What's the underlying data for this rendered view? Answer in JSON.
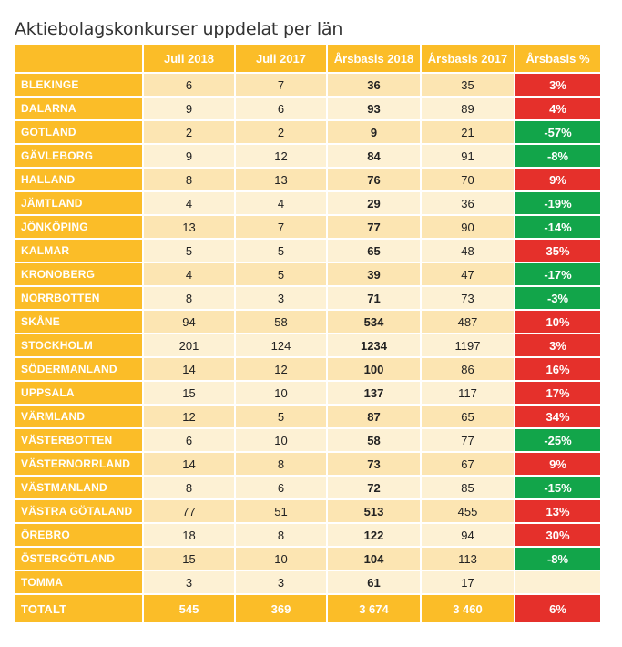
{
  "title": "Aktiebolagskonkurser uppdelat per län",
  "colors": {
    "header": "#fbbd28",
    "row_light": "#fdf1d4",
    "row_dark": "#fce5b2",
    "negative": "#12a54a",
    "positive": "#e5302b"
  },
  "table": {
    "headers": [
      "",
      "Juli 2018",
      "Juli 2017",
      "Årsbasis 2018",
      "Årsbasis 2017",
      "Årsbasis %"
    ],
    "rows": [
      [
        "BLEKINGE",
        "6",
        "7",
        "36",
        "35",
        "3%"
      ],
      [
        "DALARNA",
        "9",
        "6",
        "93",
        "89",
        "4%"
      ],
      [
        "GOTLAND",
        "2",
        "2",
        "9",
        "21",
        "-57%"
      ],
      [
        "GÄVLEBORG",
        "9",
        "12",
        "84",
        "91",
        "-8%"
      ],
      [
        "HALLAND",
        "8",
        "13",
        "76",
        "70",
        "9%"
      ],
      [
        "JÄMTLAND",
        "4",
        "4",
        "29",
        "36",
        "-19%"
      ],
      [
        "JÖNKÖPING",
        "13",
        "7",
        "77",
        "90",
        "-14%"
      ],
      [
        "KALMAR",
        "5",
        "5",
        "65",
        "48",
        "35%"
      ],
      [
        "KRONOBERG",
        "4",
        "5",
        "39",
        "47",
        "-17%"
      ],
      [
        "NORRBOTTEN",
        "8",
        "3",
        "71",
        "73",
        "-3%"
      ],
      [
        "SKÅNE",
        "94",
        "58",
        "534",
        "487",
        "10%"
      ],
      [
        "STOCKHOLM",
        "201",
        "124",
        "1234",
        "1197",
        "3%"
      ],
      [
        "SÖDERMANLAND",
        "14",
        "12",
        "100",
        "86",
        "16%"
      ],
      [
        "UPPSALA",
        "15",
        "10",
        "137",
        "117",
        "17%"
      ],
      [
        "VÄRMLAND",
        "12",
        "5",
        "87",
        "65",
        "34%"
      ],
      [
        "VÄSTERBOTTEN",
        "6",
        "10",
        "58",
        "77",
        "-25%"
      ],
      [
        "VÄSTERNORRLAND",
        "14",
        "8",
        "73",
        "67",
        "9%"
      ],
      [
        "VÄSTMANLAND",
        "8",
        "6",
        "72",
        "85",
        "-15%"
      ],
      [
        "VÄSTRA GÖTALAND",
        "77",
        "51",
        "513",
        "455",
        "13%"
      ],
      [
        "ÖREBRO",
        "18",
        "8",
        "122",
        "94",
        "30%"
      ],
      [
        "ÖSTERGÖTLAND",
        "15",
        "10",
        "104",
        "113",
        "-8%"
      ],
      [
        "TOMMA",
        "3",
        "3",
        "61",
        "17",
        ""
      ]
    ],
    "total": [
      "TOTALT",
      "545",
      "369",
      "3 674",
      "3 460",
      "6%"
    ]
  }
}
